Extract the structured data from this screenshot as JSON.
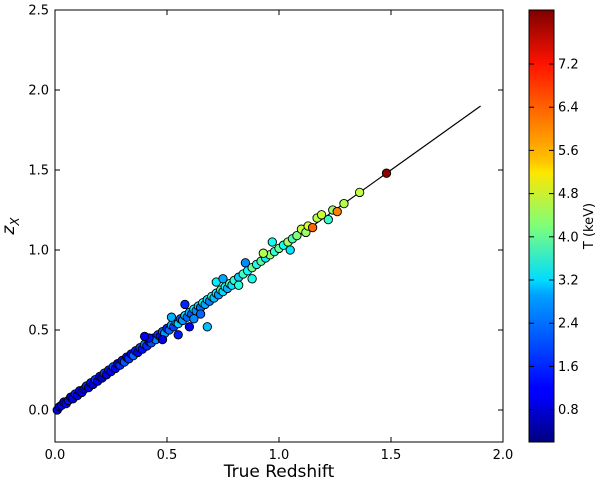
{
  "chart_data": {
    "type": "scatter",
    "title": "",
    "xlabel": "True Redshift",
    "ylabel": "z",
    "ylabel_sub": "X",
    "xlim": [
      0.0,
      2.0
    ],
    "ylim": [
      -0.2,
      2.5
    ],
    "xticks": [
      "0.0",
      "0.5",
      "1.0",
      "1.5",
      "2.0"
    ],
    "yticks": [
      "0.0",
      "0.5",
      "1.0",
      "1.5",
      "2.0",
      "2.5"
    ],
    "grid": false,
    "reference_line": {
      "x": [
        0.0,
        1.9
      ],
      "y": [
        0.0,
        1.9
      ],
      "color": "#000000"
    },
    "colorbar": {
      "label": "T (keV)",
      "range": [
        0.2,
        8.2
      ],
      "ticks": [
        "0.8",
        "1.6",
        "2.4",
        "3.2",
        "4.0",
        "4.8",
        "5.6",
        "6.4",
        "7.2"
      ],
      "colormap": "jet"
    },
    "points": [
      {
        "x": 0.01,
        "y": 0.0,
        "t": 1.0
      },
      {
        "x": 0.02,
        "y": 0.02,
        "t": 0.8
      },
      {
        "x": 0.03,
        "y": 0.03,
        "t": 1.2
      },
      {
        "x": 0.04,
        "y": 0.05,
        "t": 0.9
      },
      {
        "x": 0.05,
        "y": 0.04,
        "t": 1.1
      },
      {
        "x": 0.06,
        "y": 0.06,
        "t": 1.3
      },
      {
        "x": 0.07,
        "y": 0.08,
        "t": 0.7
      },
      {
        "x": 0.08,
        "y": 0.07,
        "t": 1.0
      },
      {
        "x": 0.09,
        "y": 0.1,
        "t": 1.4
      },
      {
        "x": 0.1,
        "y": 0.09,
        "t": 0.9
      },
      {
        "x": 0.11,
        "y": 0.12,
        "t": 1.1
      },
      {
        "x": 0.12,
        "y": 0.11,
        "t": 1.2
      },
      {
        "x": 0.13,
        "y": 0.13,
        "t": 0.8
      },
      {
        "x": 0.14,
        "y": 0.15,
        "t": 1.5
      },
      {
        "x": 0.15,
        "y": 0.14,
        "t": 1.0
      },
      {
        "x": 0.16,
        "y": 0.17,
        "t": 1.3
      },
      {
        "x": 0.17,
        "y": 0.16,
        "t": 0.9
      },
      {
        "x": 0.18,
        "y": 0.19,
        "t": 1.6
      },
      {
        "x": 0.19,
        "y": 0.18,
        "t": 1.1
      },
      {
        "x": 0.2,
        "y": 0.21,
        "t": 1.2
      },
      {
        "x": 0.21,
        "y": 0.2,
        "t": 0.8
      },
      {
        "x": 0.22,
        "y": 0.23,
        "t": 1.7
      },
      {
        "x": 0.23,
        "y": 0.22,
        "t": 1.0
      },
      {
        "x": 0.24,
        "y": 0.25,
        "t": 1.4
      },
      {
        "x": 0.25,
        "y": 0.24,
        "t": 1.1
      },
      {
        "x": 0.26,
        "y": 0.27,
        "t": 1.8
      },
      {
        "x": 0.27,
        "y": 0.26,
        "t": 1.2
      },
      {
        "x": 0.28,
        "y": 0.29,
        "t": 0.9
      },
      {
        "x": 0.29,
        "y": 0.28,
        "t": 1.5
      },
      {
        "x": 0.3,
        "y": 0.31,
        "t": 1.3
      },
      {
        "x": 0.31,
        "y": 0.3,
        "t": 1.9
      },
      {
        "x": 0.32,
        "y": 0.33,
        "t": 1.0
      },
      {
        "x": 0.33,
        "y": 0.32,
        "t": 1.6
      },
      {
        "x": 0.34,
        "y": 0.35,
        "t": 1.2
      },
      {
        "x": 0.35,
        "y": 0.34,
        "t": 2.0
      },
      {
        "x": 0.36,
        "y": 0.37,
        "t": 1.4
      },
      {
        "x": 0.37,
        "y": 0.36,
        "t": 1.1
      },
      {
        "x": 0.38,
        "y": 0.39,
        "t": 1.7
      },
      {
        "x": 0.39,
        "y": 0.38,
        "t": 1.3
      },
      {
        "x": 0.4,
        "y": 0.41,
        "t": 2.1
      },
      {
        "x": 0.41,
        "y": 0.4,
        "t": 1.5
      },
      {
        "x": 0.42,
        "y": 0.43,
        "t": 1.2
      },
      {
        "x": 0.43,
        "y": 0.42,
        "t": 1.8
      },
      {
        "x": 0.44,
        "y": 0.45,
        "t": 1.4
      },
      {
        "x": 0.45,
        "y": 0.44,
        "t": 2.2
      },
      {
        "x": 0.46,
        "y": 0.47,
        "t": 1.6
      },
      {
        "x": 0.47,
        "y": 0.46,
        "t": 1.3
      },
      {
        "x": 0.48,
        "y": 0.49,
        "t": 1.9
      },
      {
        "x": 0.49,
        "y": 0.48,
        "t": 2.4
      },
      {
        "x": 0.5,
        "y": 0.51,
        "t": 1.5
      },
      {
        "x": 0.51,
        "y": 0.5,
        "t": 2.0
      },
      {
        "x": 0.52,
        "y": 0.53,
        "t": 2.6
      },
      {
        "x": 0.53,
        "y": 0.52,
        "t": 1.7
      },
      {
        "x": 0.54,
        "y": 0.55,
        "t": 2.2
      },
      {
        "x": 0.55,
        "y": 0.54,
        "t": 2.8
      },
      {
        "x": 0.56,
        "y": 0.57,
        "t": 1.8
      },
      {
        "x": 0.57,
        "y": 0.56,
        "t": 2.4
      },
      {
        "x": 0.58,
        "y": 0.59,
        "t": 3.0
      },
      {
        "x": 0.59,
        "y": 0.58,
        "t": 2.0
      },
      {
        "x": 0.6,
        "y": 0.61,
        "t": 2.6
      },
      {
        "x": 0.61,
        "y": 0.6,
        "t": 1.9
      },
      {
        "x": 0.62,
        "y": 0.63,
        "t": 3.2
      },
      {
        "x": 0.63,
        "y": 0.62,
        "t": 2.3
      },
      {
        "x": 0.64,
        "y": 0.65,
        "t": 2.8
      },
      {
        "x": 0.65,
        "y": 0.64,
        "t": 2.1
      },
      {
        "x": 0.66,
        "y": 0.67,
        "t": 3.4
      },
      {
        "x": 0.67,
        "y": 0.66,
        "t": 2.5
      },
      {
        "x": 0.68,
        "y": 0.69,
        "t": 3.0
      },
      {
        "x": 0.69,
        "y": 0.68,
        "t": 2.2
      },
      {
        "x": 0.7,
        "y": 0.71,
        "t": 3.6
      },
      {
        "x": 0.71,
        "y": 0.7,
        "t": 2.7
      },
      {
        "x": 0.72,
        "y": 0.73,
        "t": 3.1
      },
      {
        "x": 0.73,
        "y": 0.72,
        "t": 2.4
      },
      {
        "x": 0.74,
        "y": 0.75,
        "t": 3.8
      },
      {
        "x": 0.75,
        "y": 0.74,
        "t": 2.9
      },
      {
        "x": 0.76,
        "y": 0.77,
        "t": 3.3
      },
      {
        "x": 0.77,
        "y": 0.76,
        "t": 2.6
      },
      {
        "x": 0.78,
        "y": 0.79,
        "t": 4.0
      },
      {
        "x": 0.79,
        "y": 0.78,
        "t": 3.0
      },
      {
        "x": 0.8,
        "y": 0.81,
        "t": 3.5
      },
      {
        "x": 0.82,
        "y": 0.83,
        "t": 2.8
      },
      {
        "x": 0.84,
        "y": 0.85,
        "t": 3.7
      },
      {
        "x": 0.86,
        "y": 0.87,
        "t": 3.2
      },
      {
        "x": 0.88,
        "y": 0.89,
        "t": 4.1
      },
      {
        "x": 0.9,
        "y": 0.91,
        "t": 3.4
      },
      {
        "x": 0.92,
        "y": 0.93,
        "t": 3.9
      },
      {
        "x": 0.94,
        "y": 0.95,
        "t": 3.1
      },
      {
        "x": 0.96,
        "y": 0.97,
        "t": 4.3
      },
      {
        "x": 0.98,
        "y": 0.99,
        "t": 3.6
      },
      {
        "x": 1.0,
        "y": 1.01,
        "t": 4.0
      },
      {
        "x": 1.02,
        "y": 1.03,
        "t": 3.3
      },
      {
        "x": 1.04,
        "y": 1.05,
        "t": 4.5
      },
      {
        "x": 1.06,
        "y": 1.07,
        "t": 3.8
      },
      {
        "x": 1.08,
        "y": 1.09,
        "t": 4.2
      },
      {
        "x": 1.1,
        "y": 1.13,
        "t": 4.7
      },
      {
        "x": 1.12,
        "y": 1.11,
        "t": 4.4
      },
      {
        "x": 1.13,
        "y": 1.15,
        "t": 4.9
      },
      {
        "x": 1.15,
        "y": 1.14,
        "t": 6.4
      },
      {
        "x": 1.17,
        "y": 1.2,
        "t": 4.6
      },
      {
        "x": 1.19,
        "y": 1.22,
        "t": 4.8
      },
      {
        "x": 1.22,
        "y": 1.19,
        "t": 3.6
      },
      {
        "x": 1.24,
        "y": 1.25,
        "t": 4.4
      },
      {
        "x": 1.26,
        "y": 1.24,
        "t": 6.2
      },
      {
        "x": 1.29,
        "y": 1.29,
        "t": 4.6
      },
      {
        "x": 1.36,
        "y": 1.36,
        "t": 4.7
      },
      {
        "x": 1.48,
        "y": 1.48,
        "t": 8.1
      },
      {
        "x": 0.42,
        "y": 0.45,
        "t": 1.3
      },
      {
        "x": 0.48,
        "y": 0.44,
        "t": 1.0
      },
      {
        "x": 0.52,
        "y": 0.58,
        "t": 2.6
      },
      {
        "x": 0.55,
        "y": 0.47,
        "t": 1.4
      },
      {
        "x": 0.6,
        "y": 0.52,
        "t": 1.2
      },
      {
        "x": 0.65,
        "y": 0.6,
        "t": 2.0
      },
      {
        "x": 0.72,
        "y": 0.8,
        "t": 3.1
      },
      {
        "x": 0.68,
        "y": 0.52,
        "t": 2.7
      },
      {
        "x": 0.75,
        "y": 0.82,
        "t": 2.5
      },
      {
        "x": 0.82,
        "y": 0.78,
        "t": 3.5
      },
      {
        "x": 0.85,
        "y": 0.92,
        "t": 2.3
      },
      {
        "x": 0.88,
        "y": 0.82,
        "t": 3.4
      },
      {
        "x": 0.93,
        "y": 0.98,
        "t": 4.6
      },
      {
        "x": 0.97,
        "y": 1.05,
        "t": 3.3
      },
      {
        "x": 1.05,
        "y": 1.0,
        "t": 3.0
      },
      {
        "x": 0.4,
        "y": 0.46,
        "t": 1.1
      },
      {
        "x": 0.58,
        "y": 0.66,
        "t": 1.5
      },
      {
        "x": 0.62,
        "y": 0.57,
        "t": 2.3
      }
    ]
  }
}
